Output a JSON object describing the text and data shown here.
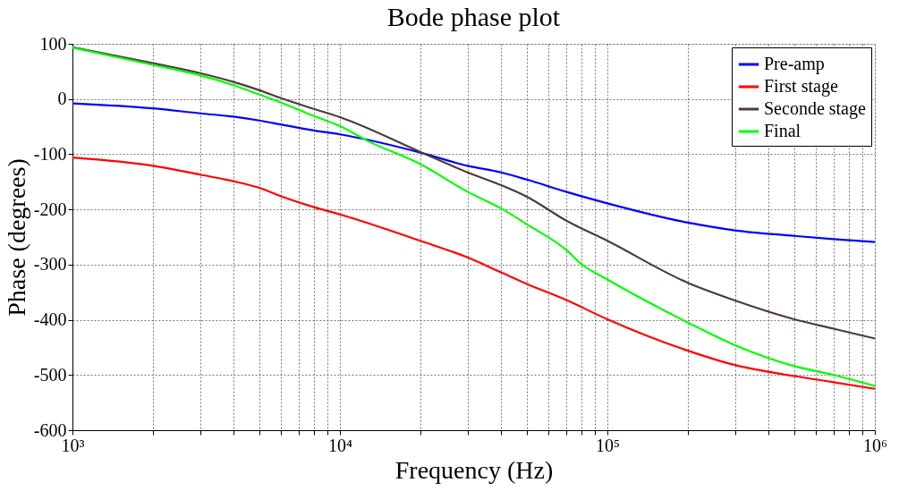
{
  "chart_data": {
    "type": "line",
    "title": "Bode phase plot",
    "xlabel": "Frequency (Hz)",
    "ylabel": "Phase (degrees)",
    "log": "x",
    "grid": true,
    "legend": "top right",
    "line_style": "solid",
    "marker": "none",
    "xlim": [
      1000,
      1000000
    ],
    "xticks": [
      {
        "value": 1000,
        "label": "10³"
      },
      {
        "value": 2000,
        "label": null
      },
      {
        "value": 3000,
        "label": null
      },
      {
        "value": 4000,
        "label": null
      },
      {
        "value": 5000,
        "label": null
      },
      {
        "value": 6000,
        "label": null
      },
      {
        "value": 7000,
        "label": null
      },
      {
        "value": 8000,
        "label": null
      },
      {
        "value": 9000,
        "label": null
      },
      {
        "value": 10000,
        "label": "10⁴"
      },
      {
        "value": 20000,
        "label": null
      },
      {
        "value": 30000,
        "label": null
      },
      {
        "value": 40000,
        "label": null
      },
      {
        "value": 50000,
        "label": null
      },
      {
        "value": 60000,
        "label": null
      },
      {
        "value": 70000,
        "label": null
      },
      {
        "value": 80000,
        "label": null
      },
      {
        "value": 90000,
        "label": null
      },
      {
        "value": 100000,
        "label": "10⁵"
      },
      {
        "value": 200000,
        "label": null
      },
      {
        "value": 300000,
        "label": null
      },
      {
        "value": 400000,
        "label": null
      },
      {
        "value": 500000,
        "label": null
      },
      {
        "value": 600000,
        "label": null
      },
      {
        "value": 700000,
        "label": null
      },
      {
        "value": 800000,
        "label": null
      },
      {
        "value": 900000,
        "label": null
      },
      {
        "value": 1000000,
        "label": "10⁶"
      }
    ],
    "ylim": [
      -600,
      100
    ],
    "yticks": [
      -600,
      -500,
      -400,
      -300,
      -200,
      -100,
      0,
      100
    ],
    "series": [
      {
        "name": "Pre-amp",
        "color": "#0000ff",
        "x": [
          1000,
          2000,
          3000,
          4000,
          5000,
          6000,
          8000,
          10000,
          20000,
          30000,
          40000,
          50000,
          70000,
          100000,
          200000,
          300000,
          500000,
          700000,
          1000000
        ],
        "values": [
          -8,
          -17,
          -26,
          -32,
          -39,
          -46,
          -57,
          -64,
          -97,
          -121,
          -133,
          -146,
          -168,
          -189,
          -224,
          -238,
          -248,
          -254,
          -259
        ]
      },
      {
        "name": "First stage",
        "color": "#ff0000",
        "x": [
          1000,
          2000,
          3000,
          4000,
          5000,
          6000,
          8000,
          10000,
          20000,
          30000,
          40000,
          50000,
          70000,
          100000,
          200000,
          300000,
          500000,
          700000,
          1000000
        ],
        "values": [
          -106,
          -121,
          -137,
          -149,
          -161,
          -176,
          -196,
          -209,
          -257,
          -287,
          -314,
          -335,
          -364,
          -399,
          -456,
          -482,
          -502,
          -513,
          -525
        ]
      },
      {
        "name": "Seconde stage",
        "color": "#4f3b3b",
        "x": [
          1000,
          2000,
          3000,
          4000,
          5000,
          6000,
          8000,
          10000,
          20000,
          30000,
          40000,
          50000,
          70000,
          100000,
          200000,
          300000,
          500000,
          700000,
          1000000
        ],
        "values": [
          94,
          65,
          47,
          31,
          16,
          2,
          -18,
          -33,
          -96,
          -133,
          -156,
          -177,
          -220,
          -257,
          -333,
          -365,
          -399,
          -416,
          -434
        ]
      },
      {
        "name": "Final",
        "color": "#00ff00",
        "x": [
          1000,
          2000,
          3000,
          4000,
          5000,
          6000,
          8000,
          10000,
          12700,
          20000,
          30000,
          40000,
          50000,
          70000,
          80000,
          100000,
          200000,
          300000,
          500000,
          700000,
          1000000
        ],
        "values": [
          93,
          62,
          43,
          25,
          8,
          -6,
          -31,
          -49,
          -76,
          -118,
          -168,
          -198,
          -227,
          -273,
          -299,
          -327,
          -405,
          -446,
          -484,
          -500,
          -520
        ]
      }
    ]
  }
}
